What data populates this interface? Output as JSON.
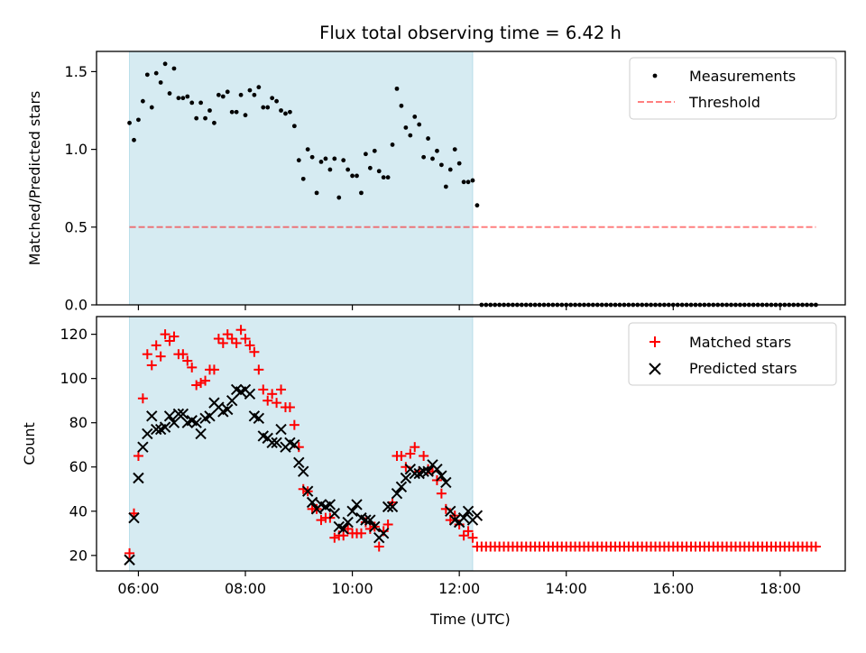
{
  "chart_data": [
    {
      "type": "scatter",
      "title": "Flux total observing time = 6.42 h",
      "xlabel": "",
      "ylabel": "Matched/Predicted stars",
      "xlim": [
        "05:13",
        "19:13"
      ],
      "ylim": [
        0,
        1.63
      ],
      "yticks": [
        "0.0",
        "0.5",
        "1.0",
        "1.5"
      ],
      "shaded_span": {
        "start": "05:50",
        "end": "12:15",
        "color": "#add8e6"
      },
      "legend": {
        "position": "top-right",
        "entries": [
          "Measurements",
          "Threshold"
        ]
      },
      "threshold": {
        "name": "Threshold",
        "y": 0.5,
        "x_range": [
          "05:50",
          "18:40"
        ],
        "color": "#ff0000",
        "style": "dashed"
      },
      "series": [
        {
          "name": "Measurements",
          "color": "#000000",
          "marker": "dot",
          "points": [
            [
              "05:50",
              1.17
            ],
            [
              "05:55",
              1.06
            ],
            [
              "06:00",
              1.19
            ],
            [
              "06:05",
              1.31
            ],
            [
              "06:10",
              1.48
            ],
            [
              "06:15",
              1.27
            ],
            [
              "06:20",
              1.49
            ],
            [
              "06:25",
              1.43
            ],
            [
              "06:30",
              1.55
            ],
            [
              "06:35",
              1.36
            ],
            [
              "06:40",
              1.52
            ],
            [
              "06:45",
              1.33
            ],
            [
              "06:50",
              1.33
            ],
            [
              "06:55",
              1.34
            ],
            [
              "07:00",
              1.3
            ],
            [
              "07:05",
              1.2
            ],
            [
              "07:10",
              1.3
            ],
            [
              "07:15",
              1.2
            ],
            [
              "07:20",
              1.25
            ],
            [
              "07:25",
              1.17
            ],
            [
              "07:30",
              1.35
            ],
            [
              "07:35",
              1.34
            ],
            [
              "07:40",
              1.37
            ],
            [
              "07:45",
              1.24
            ],
            [
              "07:50",
              1.24
            ],
            [
              "07:55",
              1.35
            ],
            [
              "08:00",
              1.22
            ],
            [
              "08:05",
              1.38
            ],
            [
              "08:10",
              1.35
            ],
            [
              "08:15",
              1.4
            ],
            [
              "08:20",
              1.27
            ],
            [
              "08:25",
              1.27
            ],
            [
              "08:30",
              1.33
            ],
            [
              "08:35",
              1.31
            ],
            [
              "08:40",
              1.25
            ],
            [
              "08:45",
              1.23
            ],
            [
              "08:50",
              1.24
            ],
            [
              "08:55",
              1.15
            ],
            [
              "09:00",
              0.93
            ],
            [
              "09:05",
              0.81
            ],
            [
              "09:10",
              1.0
            ],
            [
              "09:15",
              0.95
            ],
            [
              "09:20",
              0.72
            ],
            [
              "09:25",
              0.92
            ],
            [
              "09:30",
              0.94
            ],
            [
              "09:35",
              0.87
            ],
            [
              "09:40",
              0.94
            ],
            [
              "09:45",
              0.69
            ],
            [
              "09:50",
              0.93
            ],
            [
              "09:55",
              0.87
            ],
            [
              "10:00",
              0.83
            ],
            [
              "10:05",
              0.83
            ],
            [
              "10:10",
              0.72
            ],
            [
              "10:15",
              0.97
            ],
            [
              "10:20",
              0.88
            ],
            [
              "10:25",
              0.99
            ],
            [
              "10:30",
              0.86
            ],
            [
              "10:35",
              0.82
            ],
            [
              "10:40",
              0.82
            ],
            [
              "10:45",
              1.03
            ],
            [
              "10:50",
              1.39
            ],
            [
              "10:55",
              1.28
            ],
            [
              "11:00",
              1.14
            ],
            [
              "11:05",
              1.09
            ],
            [
              "11:10",
              1.21
            ],
            [
              "11:15",
              1.16
            ],
            [
              "11:20",
              0.95
            ],
            [
              "11:25",
              1.07
            ],
            [
              "11:30",
              0.94
            ],
            [
              "11:35",
              0.99
            ],
            [
              "11:40",
              0.9
            ],
            [
              "11:45",
              0.76
            ],
            [
              "11:50",
              0.87
            ],
            [
              "11:55",
              1.0
            ],
            [
              "12:00",
              0.91
            ],
            [
              "12:05",
              0.79
            ],
            [
              "12:10",
              0.79
            ],
            [
              "12:15",
              0.8
            ],
            [
              "12:20",
              0.64
            ]
          ],
          "zero_points": {
            "start": "12:25",
            "end": "18:40",
            "step_minutes": 5,
            "value": 0
          }
        }
      ]
    },
    {
      "type": "scatter",
      "title": "",
      "xlabel": "Time (UTC)",
      "ylabel": "Count",
      "xlim": [
        "05:13",
        "19:13"
      ],
      "ylim": [
        13,
        128
      ],
      "yticks": [
        "20",
        "40",
        "60",
        "80",
        "100",
        "120"
      ],
      "xticks": [
        "06:00",
        "08:00",
        "10:00",
        "12:00",
        "14:00",
        "16:00",
        "18:00"
      ],
      "shaded_span": {
        "start": "05:50",
        "end": "12:15",
        "color": "#add8e6"
      },
      "legend": {
        "position": "top-right",
        "entries": [
          "Matched stars",
          "Predicted stars"
        ]
      },
      "series": [
        {
          "name": "Matched stars",
          "color": "#ff0000",
          "marker": "plus",
          "points": [
            [
              "05:50",
              21
            ],
            [
              "05:55",
              39
            ],
            [
              "06:00",
              65
            ],
            [
              "06:05",
              91
            ],
            [
              "06:10",
              111
            ],
            [
              "06:15",
              106
            ],
            [
              "06:20",
              115
            ],
            [
              "06:25",
              110
            ],
            [
              "06:30",
              120
            ],
            [
              "06:35",
              117
            ],
            [
              "06:40",
              119
            ],
            [
              "06:45",
              111
            ],
            [
              "06:50",
              111
            ],
            [
              "06:55",
              108
            ],
            [
              "07:00",
              105
            ],
            [
              "07:05",
              97
            ],
            [
              "07:10",
              98
            ],
            [
              "07:15",
              99
            ],
            [
              "07:20",
              104
            ],
            [
              "07:25",
              104
            ],
            [
              "07:30",
              118
            ],
            [
              "07:35",
              116
            ],
            [
              "07:40",
              120
            ],
            [
              "07:45",
              118
            ],
            [
              "07:50",
              116
            ],
            [
              "07:55",
              122
            ],
            [
              "08:00",
              118
            ],
            [
              "08:05",
              115
            ],
            [
              "08:10",
              112
            ],
            [
              "08:15",
              104
            ],
            [
              "08:20",
              95
            ],
            [
              "08:25",
              90
            ],
            [
              "08:30",
              93
            ],
            [
              "08:35",
              89
            ],
            [
              "08:40",
              95
            ],
            [
              "08:45",
              87
            ],
            [
              "08:50",
              87
            ],
            [
              "08:55",
              79
            ],
            [
              "09:00",
              69
            ],
            [
              "09:05",
              50
            ],
            [
              "09:10",
              49
            ],
            [
              "09:15",
              41
            ],
            [
              "09:20",
              41
            ],
            [
              "09:25",
              36
            ],
            [
              "09:30",
              37
            ],
            [
              "09:35",
              37
            ],
            [
              "09:40",
              28
            ],
            [
              "09:45",
              29
            ],
            [
              "09:50",
              29
            ],
            [
              "09:55",
              32
            ],
            [
              "10:00",
              30
            ],
            [
              "10:05",
              30
            ],
            [
              "10:10",
              30
            ],
            [
              "10:15",
              35
            ],
            [
              "10:20",
              32
            ],
            [
              "10:25",
              33
            ],
            [
              "10:30",
              24
            ],
            [
              "10:35",
              31
            ],
            [
              "10:40",
              34
            ],
            [
              "10:45",
              44
            ],
            [
              "10:50",
              65
            ],
            [
              "10:55",
              65
            ],
            [
              "11:00",
              60
            ],
            [
              "11:05",
              66
            ],
            [
              "11:10",
              69
            ],
            [
              "11:15",
              58
            ],
            [
              "11:20",
              65
            ],
            [
              "11:25",
              59
            ],
            [
              "11:30",
              58
            ],
            [
              "11:35",
              54
            ],
            [
              "11:40",
              48
            ],
            [
              "11:45",
              41
            ],
            [
              "11:50",
              36
            ],
            [
              "11:55",
              38
            ],
            [
              "12:00",
              34
            ],
            [
              "12:05",
              29
            ],
            [
              "12:10",
              31
            ],
            [
              "12:15",
              28
            ],
            [
              "12:20",
              24
            ]
          ],
          "constant_points": {
            "start": "12:25",
            "end": "18:40",
            "step_minutes": 5,
            "value": 24
          }
        },
        {
          "name": "Predicted stars",
          "color": "#000000",
          "marker": "x",
          "points": [
            [
              "05:50",
              18
            ],
            [
              "05:55",
              37
            ],
            [
              "06:00",
              55
            ],
            [
              "06:05",
              69
            ],
            [
              "06:10",
              75
            ],
            [
              "06:15",
              83
            ],
            [
              "06:20",
              77
            ],
            [
              "06:25",
              77
            ],
            [
              "06:30",
              78
            ],
            [
              "06:35",
              83
            ],
            [
              "06:40",
              80
            ],
            [
              "06:45",
              84
            ],
            [
              "06:50",
              84
            ],
            [
              "06:55",
              80
            ],
            [
              "07:00",
              81
            ],
            [
              "07:05",
              80
            ],
            [
              "07:10",
              75
            ],
            [
              "07:15",
              82
            ],
            [
              "07:20",
              83
            ],
            [
              "07:25",
              89
            ],
            [
              "07:30",
              87
            ],
            [
              "07:35",
              85
            ],
            [
              "07:40",
              86
            ],
            [
              "07:45",
              90
            ],
            [
              "07:50",
              95
            ],
            [
              "07:55",
              94
            ],
            [
              "08:00",
              95
            ],
            [
              "08:05",
              93
            ],
            [
              "08:10",
              83
            ],
            [
              "08:15",
              82
            ],
            [
              "08:20",
              74
            ],
            [
              "08:25",
              73
            ],
            [
              "08:30",
              71
            ],
            [
              "08:35",
              71
            ],
            [
              "08:40",
              77
            ],
            [
              "08:45",
              69
            ],
            [
              "08:50",
              71
            ],
            [
              "08:55",
              70
            ],
            [
              "09:00",
              62
            ],
            [
              "09:05",
              58
            ],
            [
              "09:10",
              49
            ],
            [
              "09:15",
              44
            ],
            [
              "09:20",
              41
            ],
            [
              "09:25",
              43
            ],
            [
              "09:30",
              42
            ],
            [
              "09:35",
              43
            ],
            [
              "09:40",
              39
            ],
            [
              "09:45",
              33
            ],
            [
              "09:50",
              32
            ],
            [
              "09:55",
              35
            ],
            [
              "10:00",
              40
            ],
            [
              "10:05",
              43
            ],
            [
              "10:10",
              37
            ],
            [
              "10:15",
              36
            ],
            [
              "10:20",
              36
            ],
            [
              "10:25",
              33
            ],
            [
              "10:30",
              28
            ],
            [
              "10:35",
              30
            ],
            [
              "10:40",
              42
            ],
            [
              "10:45",
              42
            ],
            [
              "10:50",
              48
            ],
            [
              "10:55",
              51
            ],
            [
              "11:00",
              55
            ],
            [
              "11:05",
              59
            ],
            [
              "11:10",
              57
            ],
            [
              "11:15",
              57
            ],
            [
              "11:20",
              58
            ],
            [
              "11:25",
              58
            ],
            [
              "11:30",
              61
            ],
            [
              "11:35",
              59
            ],
            [
              "11:40",
              56
            ],
            [
              "11:45",
              53
            ],
            [
              "11:50",
              40
            ],
            [
              "11:55",
              36
            ],
            [
              "12:00",
              35
            ],
            [
              "12:05",
              37
            ],
            [
              "12:10",
              40
            ],
            [
              "12:15",
              36
            ],
            [
              "12:20",
              38
            ]
          ]
        }
      ]
    }
  ]
}
